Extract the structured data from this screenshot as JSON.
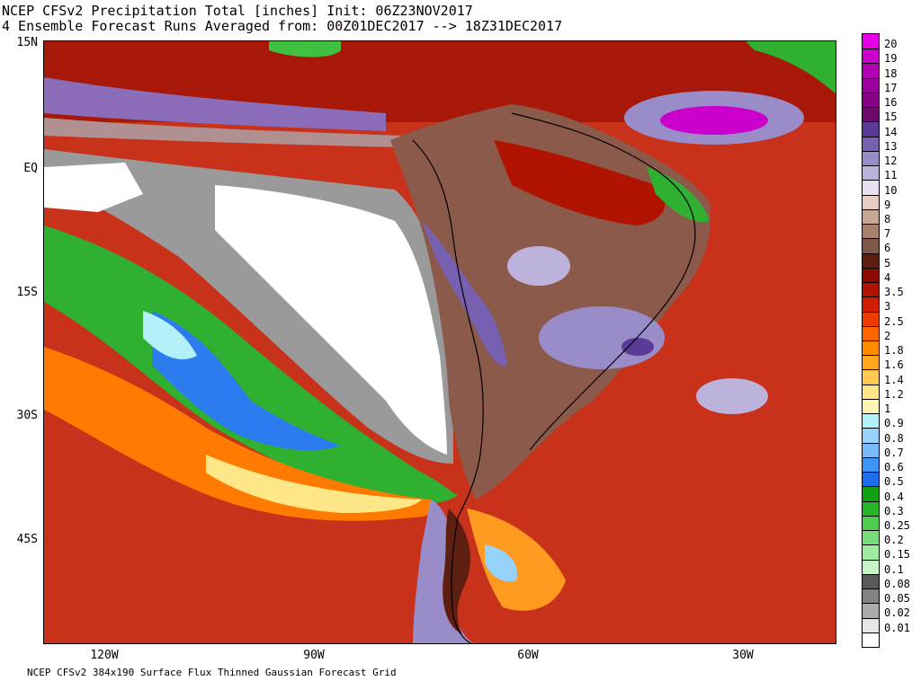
{
  "header": {
    "title_line1": "NCEP CFSv2 Precipitation Total [inches] Init: 06Z23NOV2017",
    "title_line2": "4 Ensemble Forecast Runs Averaged from: 00Z01DEC2017 --> 18Z31DEC2017"
  },
  "footer": {
    "text": "NCEP CFSv2 384x190 Surface Flux Thinned Gaussian Forecast Grid"
  },
  "map": {
    "lat_labels": [
      "15N",
      "EQ",
      "15S",
      "30S",
      "45S"
    ],
    "lon_labels": [
      "120W",
      "90W",
      "60W",
      "30W"
    ],
    "ocean_color": "#c8311a",
    "land_color": "#8b5a4a"
  },
  "colorbar": {
    "levels": [
      {
        "label": "20",
        "color": "#e600e6"
      },
      {
        "label": "19",
        "color": "#cc00cc"
      },
      {
        "label": "18",
        "color": "#b400b4"
      },
      {
        "label": "17",
        "color": "#9c009c"
      },
      {
        "label": "16",
        "color": "#840084"
      },
      {
        "label": "15",
        "color": "#6a0a6a"
      },
      {
        "label": "14",
        "color": "#5a3a96"
      },
      {
        "label": "13",
        "color": "#7860b0"
      },
      {
        "label": "12",
        "color": "#9a8cc8"
      },
      {
        "label": "11",
        "color": "#bcb2dc"
      },
      {
        "label": "10",
        "color": "#e6e0f0"
      },
      {
        "label": "9",
        "color": "#e8cdc5"
      },
      {
        "label": "8",
        "color": "#c8a696"
      },
      {
        "label": "7",
        "color": "#a8806e"
      },
      {
        "label": "6",
        "color": "#7e5848"
      },
      {
        "label": "5",
        "color": "#5e1e10"
      },
      {
        "label": "4",
        "color": "#8c0a00"
      },
      {
        "label": "3.5",
        "color": "#b01400"
      },
      {
        "label": "3",
        "color": "#d21e00"
      },
      {
        "label": "2.5",
        "color": "#ec3c00"
      },
      {
        "label": "2",
        "color": "#ff6400"
      },
      {
        "label": "1.8",
        "color": "#ff8c00"
      },
      {
        "label": "1.6",
        "color": "#ffa81e"
      },
      {
        "label": "1.4",
        "color": "#ffc850"
      },
      {
        "label": "1.2",
        "color": "#ffe687"
      },
      {
        "label": "1",
        "color": "#fff5b4"
      },
      {
        "label": "0.9",
        "color": "#b4f0fa"
      },
      {
        "label": "0.8",
        "color": "#96d2fa"
      },
      {
        "label": "0.7",
        "color": "#78b9fa"
      },
      {
        "label": "0.6",
        "color": "#3c96f5"
      },
      {
        "label": "0.5",
        "color": "#1e6eeb"
      },
      {
        "label": "0.4",
        "color": "#14a014"
      },
      {
        "label": "0.3",
        "color": "#28b428"
      },
      {
        "label": "0.25",
        "color": "#50cc50"
      },
      {
        "label": "0.2",
        "color": "#78dc78"
      },
      {
        "label": "0.15",
        "color": "#a0eba0"
      },
      {
        "label": "0.1",
        "color": "#c8f5c8"
      },
      {
        "label": "0.08",
        "color": "#5a5a5a"
      },
      {
        "label": "0.05",
        "color": "#828282"
      },
      {
        "label": "0.02",
        "color": "#aaaaaa"
      },
      {
        "label": "0.01",
        "color": "#e6e6e6"
      }
    ],
    "bottom_color": "#ffffff"
  }
}
